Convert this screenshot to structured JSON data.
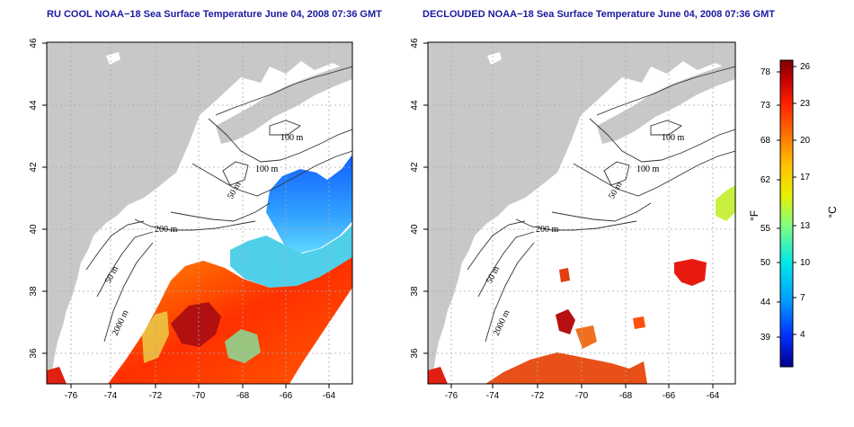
{
  "panels": [
    {
      "title": "RU COOL NOAA−18 Sea Surface Temperature June 04, 2008 07:36 GMT",
      "x_ticks": [
        "-76",
        "-74",
        "-72",
        "-70",
        "-68",
        "-66",
        "-64"
      ],
      "y_ticks": [
        "36",
        "38",
        "40",
        "42",
        "44",
        "46"
      ],
      "contour_labels": [
        "100 m",
        "100 m",
        "50 m",
        "200 m",
        "50 m",
        "2000 m"
      ]
    },
    {
      "title": "DECLOUDED NOAA−18 Sea Surface Temperature June 04, 2008 07:36 GMT",
      "x_ticks": [
        "-76",
        "-74",
        "-72",
        "-70",
        "-68",
        "-66",
        "-64"
      ],
      "y_ticks": [
        "36",
        "38",
        "40",
        "42",
        "44",
        "46"
      ],
      "contour_labels": [
        "100 m",
        "100 m",
        "50 m",
        "200 m",
        "50 m",
        "2000 m"
      ]
    }
  ],
  "colorbar": {
    "fahrenheit_ticks": [
      "78",
      "73",
      "68",
      "62",
      "55",
      "50",
      "44",
      "39"
    ],
    "celsius_ticks": [
      "26",
      "23",
      "20",
      "17",
      "13",
      "10",
      "7",
      "4"
    ],
    "fahrenheit_label": "°F",
    "celsius_label": "°C",
    "colors": [
      "#00008c",
      "#0030ff",
      "#00a0ff",
      "#00e8e8",
      "#80ff80",
      "#e8f000",
      "#ffc000",
      "#ff7000",
      "#ff2000",
      "#c00000",
      "#800000"
    ]
  },
  "colors": {
    "land": "#c8c8c8",
    "title": "#1a1aa0",
    "grid": "#aaaaaa"
  }
}
